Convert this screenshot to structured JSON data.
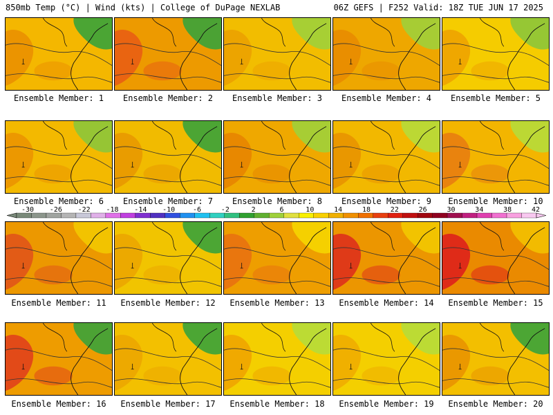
{
  "header": {
    "left": "850mb Temp (°C) | Wind (kts) | College of DuPage NEXLAB",
    "right": "06Z GEFS | F252 Valid: 18Z TUE JUN 17 2025"
  },
  "caption_prefix": "Ensemble Member:",
  "members": [
    {
      "label": "Ensemble Member: 1",
      "dominant_color": "#f4b700",
      "warm_spot": "#e98e00",
      "cool_spot": "#39a33a"
    },
    {
      "label": "Ensemble Member: 2",
      "dominant_color": "#ed9a00",
      "warm_spot": "#e85a14",
      "cool_spot": "#39a33a"
    },
    {
      "label": "Ensemble Member: 3",
      "dominant_color": "#f2bd00",
      "warm_spot": "#eba000",
      "cool_spot": "#9fd03a"
    },
    {
      "label": "Ensemble Member: 4",
      "dominant_color": "#eea700",
      "warm_spot": "#e88a00",
      "cool_spot": "#9fd03a"
    },
    {
      "label": "Ensemble Member: 5",
      "dominant_color": "#f5cc00",
      "warm_spot": "#eda000",
      "cool_spot": "#8cc63a"
    },
    {
      "label": "Ensemble Member: 6",
      "dominant_color": "#f3b900",
      "warm_spot": "#ea9200",
      "cool_spot": "#8cc63a"
    },
    {
      "label": "Ensemble Member: 7",
      "dominant_color": "#f1bb00",
      "warm_spot": "#e89600",
      "cool_spot": "#3aa33a"
    },
    {
      "label": "Ensemble Member: 8",
      "dominant_color": "#efa800",
      "warm_spot": "#e68200",
      "cool_spot": "#9fd03a"
    },
    {
      "label": "Ensemble Member: 9",
      "dominant_color": "#f2b800",
      "warm_spot": "#e89000",
      "cool_spot": "#b6db3a"
    },
    {
      "label": "Ensemble Member: 10",
      "dominant_color": "#f3b500",
      "warm_spot": "#e67a10",
      "cool_spot": "#b6db3a"
    },
    {
      "label": "Ensemble Member: 11",
      "dominant_color": "#ec9800",
      "warm_spot": "#e0501a",
      "cool_spot": "#f3c800"
    },
    {
      "label": "Ensemble Member: 12",
      "dominant_color": "#f1c400",
      "warm_spot": "#eba400",
      "cool_spot": "#3aa33a"
    },
    {
      "label": "Ensemble Member: 13",
      "dominant_color": "#ee9e00",
      "warm_spot": "#e76e10",
      "cool_spot": "#f5d500"
    },
    {
      "label": "Ensemble Member: 14",
      "dominant_color": "#ec9600",
      "warm_spot": "#dd2a1c",
      "cool_spot": "#f3c800"
    },
    {
      "label": "Ensemble Member: 15",
      "dominant_color": "#ea8a00",
      "warm_spot": "#dd1a1c",
      "cool_spot": "#f3c000"
    },
    {
      "label": "Ensemble Member: 16",
      "dominant_color": "#ee9c00",
      "warm_spot": "#df3c1c",
      "cool_spot": "#3aa33a"
    },
    {
      "label": "Ensemble Member: 17",
      "dominant_color": "#f3c000",
      "warm_spot": "#eba400",
      "cool_spot": "#3aa33a"
    },
    {
      "label": "Ensemble Member: 18",
      "dominant_color": "#f4cf00",
      "warm_spot": "#eea200",
      "cool_spot": "#b6db3a"
    },
    {
      "label": "Ensemble Member: 19",
      "dominant_color": "#f4cf00",
      "warm_spot": "#eeaa00",
      "cool_spot": "#b6db3a"
    },
    {
      "label": "Ensemble Member: 20",
      "dominant_color": "#f3bf00",
      "warm_spot": "#e89000",
      "cool_spot": "#3aa33a"
    }
  ],
  "colorbar": {
    "ticks": [
      "-30",
      "-26",
      "-22",
      "-18",
      "-14",
      "-10",
      "-6",
      "-2",
      "2",
      "6",
      "10",
      "14",
      "18",
      "22",
      "26",
      "30",
      "34",
      "38",
      "42"
    ],
    "colors": [
      "#7a8a7a",
      "#8c968c",
      "#a0a4a0",
      "#b4b4b4",
      "#c8c8d8",
      "#e0b0e8",
      "#e070e8",
      "#c040e0",
      "#8030d0",
      "#5030c0",
      "#3050e0",
      "#2090f0",
      "#20c0f0",
      "#30d0c0",
      "#30c080",
      "#30a030",
      "#60b030",
      "#9fd03a",
      "#e0e040",
      "#f8f000",
      "#f8d000",
      "#f0b000",
      "#f09000",
      "#f07000",
      "#e84010",
      "#e02010",
      "#c01010",
      "#a00810",
      "#900020",
      "#a01050",
      "#c02080",
      "#e040b0",
      "#f070d0",
      "#f8a0e0",
      "#f8c8f0"
    ]
  }
}
